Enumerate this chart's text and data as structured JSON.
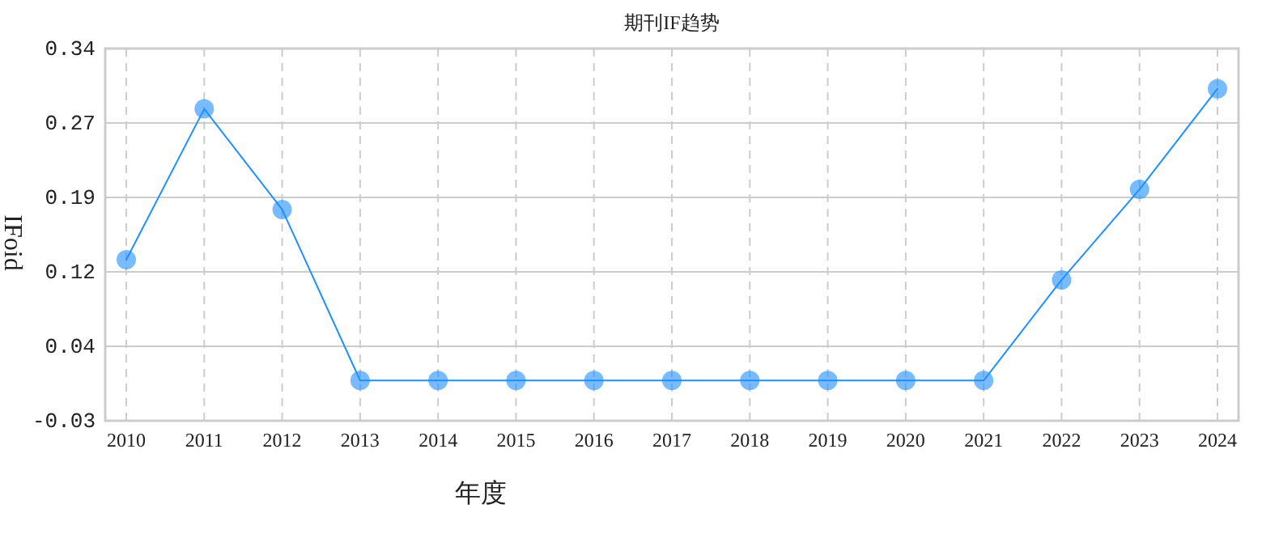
{
  "chart_data": {
    "type": "line",
    "title": "期刊IF趋势",
    "xlabel": "年度",
    "ylabel": "IFoid",
    "categories": [
      "2010",
      "2011",
      "2012",
      "2013",
      "2014",
      "2015",
      "2016",
      "2017",
      "2018",
      "2019",
      "2020",
      "2021",
      "2022",
      "2023",
      "2024"
    ],
    "series": [
      {
        "color": "#1e90ff",
        "values": [
          0.13,
          0.28,
          0.18,
          0.01,
          0.01,
          0.01,
          0.01,
          0.01,
          0.01,
          0.01,
          0.01,
          0.01,
          0.11,
          0.2,
          0.3
        ]
      }
    ],
    "ylim": [
      -0.03,
      0.34
    ],
    "yticks": [
      {
        "value": -0.03,
        "label": "-0.03"
      },
      {
        "value": 0.044,
        "label": "0.04"
      },
      {
        "value": 0.118,
        "label": "0.12"
      },
      {
        "value": 0.192,
        "label": "0.19"
      },
      {
        "value": 0.266,
        "label": "0.27"
      },
      {
        "value": 0.34,
        "label": "0.34"
      }
    ],
    "grid": true,
    "marker": "circle",
    "line_style": "solid"
  }
}
